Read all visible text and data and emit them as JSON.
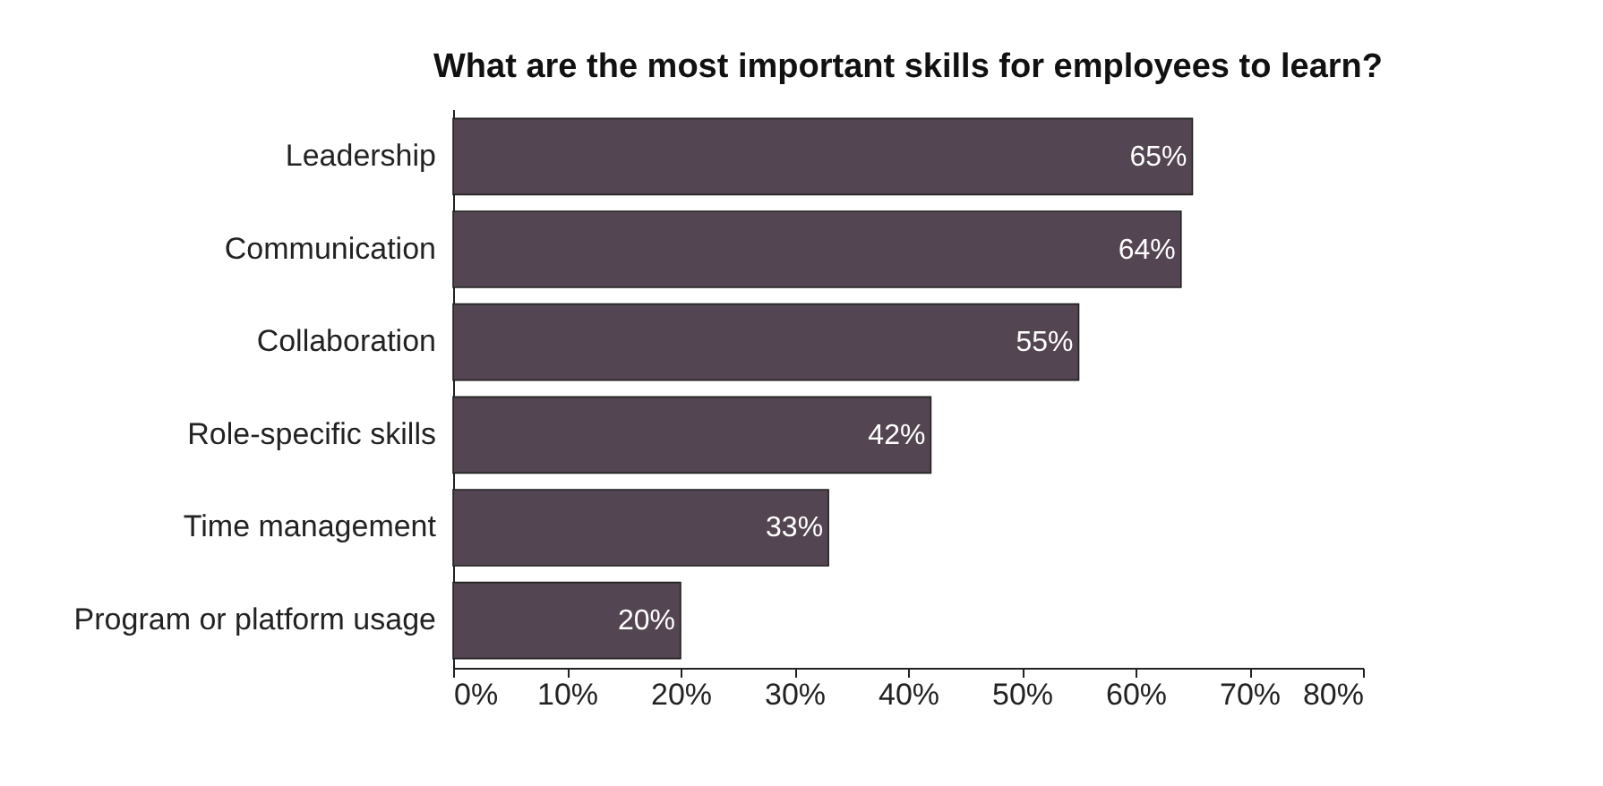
{
  "chart_data": {
    "type": "bar",
    "orientation": "horizontal",
    "title": "What are the most important skills for employees to learn?",
    "categories": [
      "Leadership",
      "Communication",
      "Collaboration",
      "Role-specific skills",
      "Time management",
      "Program or platform usage"
    ],
    "values": [
      65,
      64,
      55,
      42,
      33,
      20
    ],
    "value_labels": [
      "65%",
      "64%",
      "55%",
      "42%",
      "33%",
      "20%"
    ],
    "color": "#534551",
    "xlim": [
      0,
      80
    ],
    "xticks": [
      {
        "value": 0,
        "label": "0%"
      },
      {
        "value": 10,
        "label": "10%"
      },
      {
        "value": 20,
        "label": "20%"
      },
      {
        "value": 30,
        "label": "30%"
      },
      {
        "value": 40,
        "label": "40%"
      },
      {
        "value": 50,
        "label": "50%"
      },
      {
        "value": 60,
        "label": "60%"
      },
      {
        "value": 70,
        "label": "70%"
      },
      {
        "value": 80,
        "label": "80%"
      }
    ],
    "grid": false
  }
}
